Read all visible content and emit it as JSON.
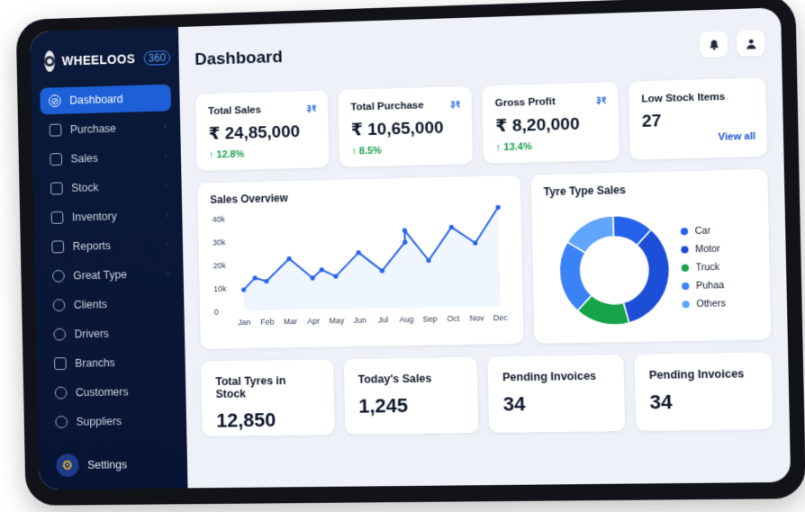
{
  "brand": {
    "name": "WHEELOOS",
    "suffix": "360"
  },
  "sidebar": {
    "items": [
      {
        "label": "Dashboard",
        "icon": "dashboard-icon",
        "active": true
      },
      {
        "label": "Purchase",
        "icon": "cart-icon"
      },
      {
        "label": "Sales",
        "icon": "receipt-icon"
      },
      {
        "label": "Stock",
        "icon": "box-icon"
      },
      {
        "label": "Inventory",
        "icon": "clipboard-icon"
      },
      {
        "label": "Reports",
        "icon": "report-icon"
      },
      {
        "label": "Great Type",
        "icon": "tyre-icon"
      },
      {
        "label": "Clients",
        "icon": "users-icon"
      },
      {
        "label": "Drivers",
        "icon": "driver-icon"
      },
      {
        "label": "Branchs",
        "icon": "branch-icon"
      },
      {
        "label": "Customers",
        "icon": "customer-icon"
      },
      {
        "label": "Suppliers",
        "icon": "supplier-icon"
      }
    ],
    "settings_label": "Settings"
  },
  "header": {
    "title": "Dashboard"
  },
  "stats": [
    {
      "label": "Total Sales",
      "value": "₹ 24,85,000",
      "change": "↑ 12.8%",
      "corner": "३१"
    },
    {
      "label": "Total Purchase",
      "value": "₹ 10,65,000",
      "change": "↑ 8.5%",
      "corner": "३१"
    },
    {
      "label": "Gross Profit",
      "value": "₹ 8,20,000",
      "change": "↑ 13.4%",
      "corner": "३१"
    },
    {
      "label": "Low Stock Items",
      "value": "27",
      "link": "View all"
    }
  ],
  "sales_overview": {
    "title": "Sales Overview"
  },
  "tyre_sales": {
    "title": "Tyre Type Sales",
    "legend": [
      "Car",
      "Motor",
      "Truck",
      "Puhaa",
      "Others"
    ]
  },
  "bottom": [
    {
      "label": "Total Tyres in Stock",
      "value": "12,850"
    },
    {
      "label": "Today's Sales",
      "value": "1,245"
    },
    {
      "label": "Pending Invoices",
      "value": "34"
    },
    {
      "label": "Pending Invoices",
      "value": "34"
    }
  ],
  "colors": {
    "accent": "#1d5fd6",
    "positive": "#16a34a",
    "sidebar": "#0b1a3a",
    "green": "#16a34a",
    "blue": "#2563eb"
  },
  "chart_data": [
    {
      "type": "line",
      "title": "Sales Overview",
      "x": [
        "Jan",
        "",
        "Feb",
        "Mar",
        "Apr",
        "",
        "May",
        "Jun",
        "Jul",
        "Aug",
        "",
        "Sep",
        "Oct",
        "Nov",
        "Dec"
      ],
      "categories": [
        "Jan",
        "Feb",
        "Mar",
        "Apr",
        "May",
        "Jun",
        "Jul",
        "Aug",
        "Sep",
        "Oct",
        "Nov",
        "Dec"
      ],
      "points": [
        {
          "x": 0,
          "y": 9000
        },
        {
          "x": 0.5,
          "y": 14000
        },
        {
          "x": 1,
          "y": 12500
        },
        {
          "x": 2,
          "y": 22000
        },
        {
          "x": 3,
          "y": 13500
        },
        {
          "x": 3.4,
          "y": 17000
        },
        {
          "x": 4,
          "y": 14000
        },
        {
          "x": 5,
          "y": 24000
        },
        {
          "x": 6,
          "y": 16000
        },
        {
          "x": 7,
          "y": 28000
        },
        {
          "x": 7,
          "y": 33000
        },
        {
          "x": 8,
          "y": 20000
        },
        {
          "x": 9,
          "y": 34000
        },
        {
          "x": 10,
          "y": 27000
        },
        {
          "x": 11,
          "y": 42000
        }
      ],
      "yticks": [
        "0",
        "10k",
        "20k",
        "30k",
        "40k"
      ],
      "ylim": [
        0,
        40000
      ],
      "xlabel": "",
      "ylabel": "",
      "grid": false
    },
    {
      "type": "pie",
      "title": "Tyre Type Sales",
      "labels": [
        "Car",
        "Motor",
        "Truck",
        "Puhaa",
        "Others"
      ],
      "values": [
        12,
        34,
        16,
        22,
        16
      ],
      "colors": [
        "#2563eb",
        "#1d4ed8",
        "#16a34a",
        "#3b82f6",
        "#60a5fa"
      ],
      "donut": true
    }
  ]
}
